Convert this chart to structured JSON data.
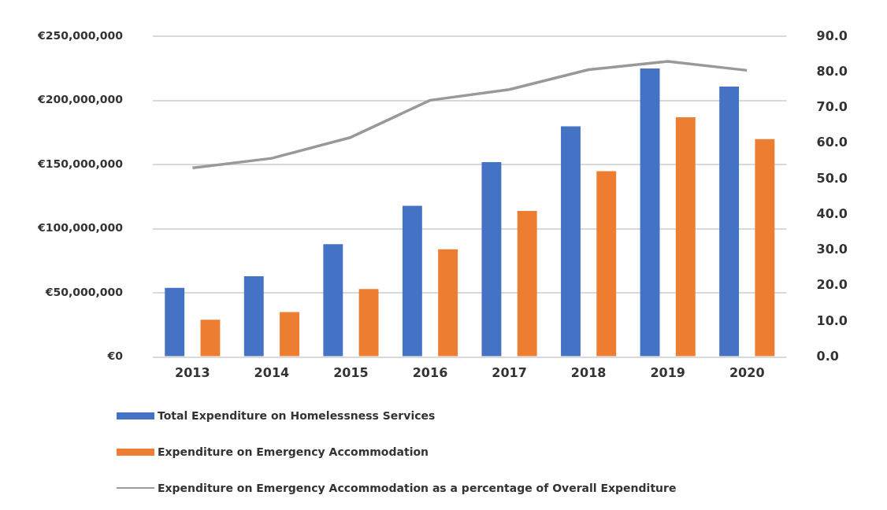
{
  "chart_data": {
    "type": "bar",
    "categories": [
      "2013",
      "2014",
      "2015",
      "2016",
      "2017",
      "2018",
      "2019",
      "2020"
    ],
    "series": [
      {
        "name": "Total Expenditure on Homelessness Services",
        "color": "#4472c4",
        "values": [
          54000000,
          63000000,
          88000000,
          118000000,
          152000000,
          180000000,
          225000000,
          211000000
        ]
      },
      {
        "name": "Expenditure on Emergency Accommodation",
        "color": "#ed7d31",
        "values": [
          29000000,
          35000000,
          53000000,
          84000000,
          114000000,
          145000000,
          187000000,
          170000000
        ]
      },
      {
        "name": "Expenditure on Emergency Accommodation as a percentage of Overall Expenditure",
        "type": "line",
        "axis": "y2",
        "color": "#999999",
        "values": [
          53.1,
          55.8,
          61.7,
          72.1,
          75.1,
          80.7,
          83.0,
          80.5
        ]
      }
    ],
    "ylim": [
      0,
      250000000
    ],
    "yticks": [
      {
        "value": 0,
        "label": "€0"
      },
      {
        "value": 50000000,
        "label": "€50,000,000"
      },
      {
        "value": 100000000,
        "label": "€100,000,000"
      },
      {
        "value": 150000000,
        "label": "€150,000,000"
      },
      {
        "value": 200000000,
        "label": "€200,000,000"
      },
      {
        "value": 250000000,
        "label": "€250,000,000"
      }
    ],
    "y2lim": [
      0,
      90
    ],
    "y2ticks": [
      {
        "value": 0,
        "label": "0.0"
      },
      {
        "value": 10,
        "label": "10.0"
      },
      {
        "value": 20,
        "label": "20.0"
      },
      {
        "value": 30,
        "label": "30.0"
      },
      {
        "value": 40,
        "label": "40.0"
      },
      {
        "value": 50,
        "label": "50.0"
      },
      {
        "value": 60,
        "label": "60.0"
      },
      {
        "value": 70,
        "label": "70.0"
      },
      {
        "value": 80,
        "label": "80.0"
      },
      {
        "value": 90,
        "label": "90.0"
      }
    ],
    "grid": "y",
    "legend": "bottom",
    "marker": "none"
  }
}
